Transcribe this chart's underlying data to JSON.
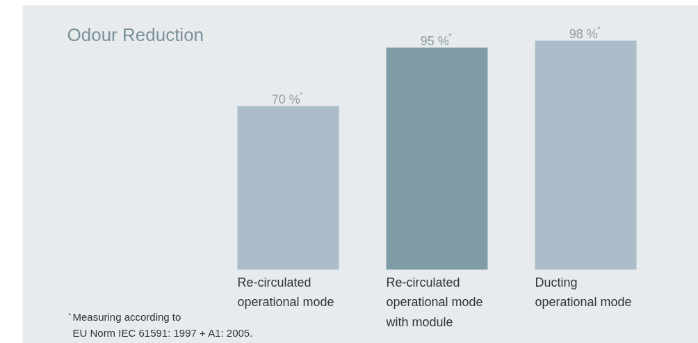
{
  "chart_data": {
    "type": "bar",
    "title": "Odour Reduction",
    "categories": [
      "Re-circulated operational mode",
      "Re-circulated operational mode with module",
      "Ducting operational mode"
    ],
    "values": [
      70,
      95,
      98
    ],
    "colors": [
      "#aabdc8",
      "#7f9ba6",
      "#aabdc8"
    ],
    "value_labels": [
      "70 %$^{*}$",
      "95 %$^{*}$",
      "98 %$^{*}$"
    ],
    "annotations": [
      "$^{*}$Measuring according to\nEU Norm IEC 61591: 1997 + A1: 2005."
    ]
  }
}
